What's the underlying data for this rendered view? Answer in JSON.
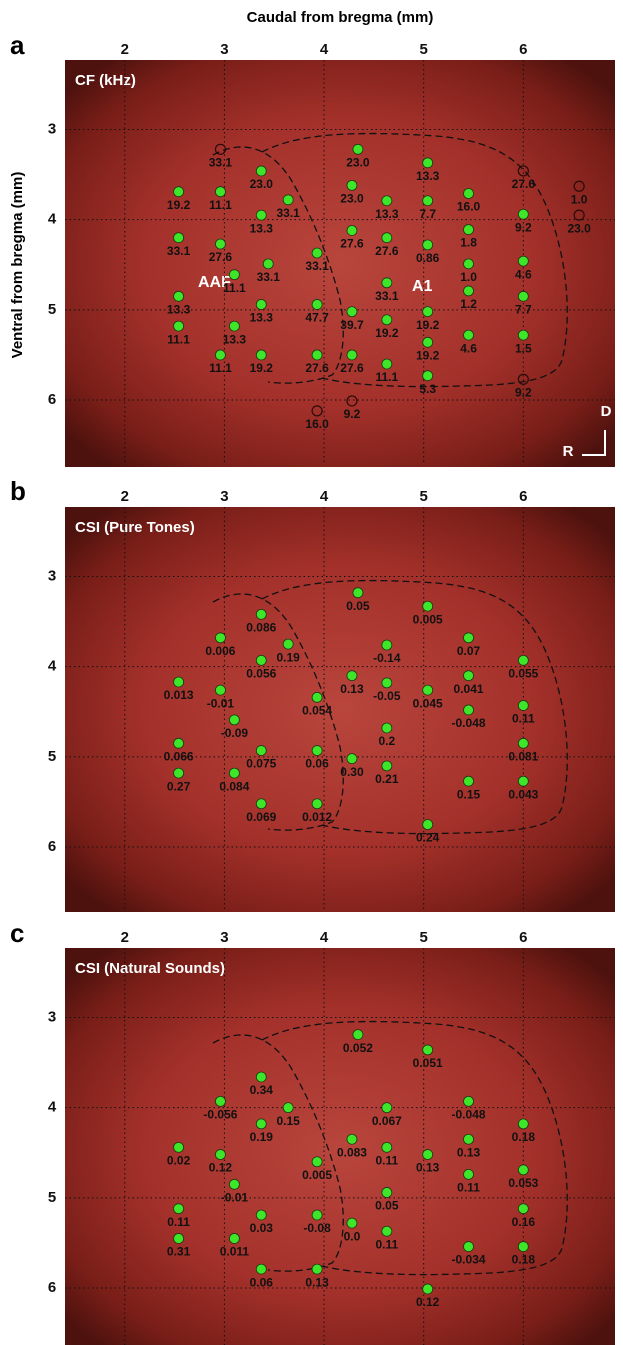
{
  "chart_data": [
    {
      "type": "scatter",
      "panel_label": "a",
      "title": "CF (kHz)",
      "xlabel": "Caudal from bregma (mm)",
      "ylabel": "Ventral from bregma (mm)",
      "annotations": [
        "AAF",
        "A1"
      ],
      "orientation": [
        "D",
        "R"
      ],
      "xlim": [
        1.4,
        6.92
      ],
      "ylim": [
        2.23,
        6.72
      ],
      "xticks": [
        2,
        3,
        4,
        5,
        6
      ],
      "yticks": [
        3,
        4,
        5,
        6
      ],
      "grid": true,
      "series": [
        {
          "color": "#3ee62a",
          "marker": "filled",
          "x": [
            2.54,
            2.96,
            3.37,
            3.64,
            3.37,
            2.54,
            2.96,
            3.1,
            3.44,
            3.93,
            2.54,
            2.54,
            3.37,
            3.93,
            3.1,
            2.96,
            3.37,
            3.93,
            4.34,
            4.28,
            4.63,
            5.04,
            5.04,
            5.45,
            4.28,
            4.63,
            5.04,
            5.45,
            5.45,
            4.63,
            4.28,
            4.63,
            5.04,
            5.45,
            5.04,
            5.45,
            4.28,
            4.63,
            5.04,
            6.0,
            6.0,
            6.0,
            6.0
          ],
          "y": [
            3.69,
            3.69,
            3.46,
            3.78,
            3.95,
            4.2,
            4.27,
            4.61,
            4.49,
            4.37,
            4.85,
            5.18,
            4.94,
            4.94,
            5.18,
            5.5,
            5.5,
            5.5,
            3.22,
            3.62,
            3.79,
            3.37,
            3.79,
            3.71,
            4.12,
            4.2,
            4.28,
            4.11,
            4.49,
            4.7,
            5.02,
            5.11,
            5.02,
            4.79,
            5.36,
            5.28,
            5.5,
            5.6,
            5.73,
            3.94,
            4.46,
            4.85,
            5.28
          ],
          "values": [
            19.2,
            11.1,
            23,
            33.1,
            13.3,
            33.1,
            27.6,
            11.1,
            33.1,
            33.1,
            13.3,
            11.1,
            13.3,
            47.7,
            13.3,
            11.1,
            19.2,
            27.6,
            23,
            23,
            13.3,
            13.3,
            7.7,
            16,
            27.6,
            27.6,
            0.86,
            1.8,
            1,
            33.1,
            39.7,
            19.2,
            19.2,
            1.2,
            19.2,
            4.6,
            27.6,
            11.1,
            5.3,
            9.2,
            4.6,
            7.7,
            1.5
          ],
          "value_labels": [
            "19.2",
            "11.1",
            "23.0",
            "33.1",
            "13.3",
            "33.1",
            "27.6",
            "11.1",
            "33.1",
            "33.1",
            "13.3",
            "11.1",
            "13.3",
            "47.7",
            "13.3",
            "11.1",
            "19.2",
            "27.6",
            "23.0",
            "23.0",
            "13.3",
            "13.3",
            "7.7",
            "16.0",
            "27.6",
            "27.6",
            "0.86",
            "1.8",
            "1.0",
            "33.1",
            "39.7",
            "19.2",
            "19.2",
            "1.2",
            "19.2",
            "4.6",
            "27.6",
            "11.1",
            "5.3",
            "9.2",
            "4.6",
            "7.7",
            "1.5"
          ]
        },
        {
          "color": "#2a0a08",
          "marker": "open",
          "x": [
            2.96,
            6.0,
            6.56,
            6.56,
            6.0,
            3.93,
            4.28
          ],
          "y": [
            3.22,
            3.46,
            3.63,
            3.95,
            5.77,
            6.12,
            6.01
          ],
          "values": [
            33.1,
            27.6,
            1,
            23,
            9.2,
            16,
            9.2
          ],
          "value_labels": [
            "33.1",
            "27.6",
            "1.0",
            "23.0",
            "9.2",
            "16.0",
            "9.2"
          ]
        }
      ]
    },
    {
      "type": "scatter",
      "panel_label": "b",
      "title": "CSI (Pure Tones)",
      "xlim": [
        1.4,
        6.92
      ],
      "ylim": [
        2.23,
        6.72
      ],
      "xticks": [
        2,
        3,
        4,
        5,
        6
      ],
      "yticks": [
        3,
        4,
        5,
        6
      ],
      "grid": true,
      "series": [
        {
          "color": "#3ee62a",
          "marker": "filled",
          "x": [
            4.34,
            5.04,
            3.37,
            2.96,
            3.64,
            3.37,
            4.63,
            5.45,
            6.0,
            2.54,
            2.96,
            4.28,
            4.63,
            5.04,
            5.45,
            5.45,
            3.1,
            3.93,
            6.0,
            4.63,
            2.54,
            3.37,
            3.93,
            4.28,
            4.63,
            6.0,
            2.54,
            3.1,
            5.45,
            6.0,
            3.37,
            3.93,
            5.04
          ],
          "y": [
            3.18,
            3.33,
            3.42,
            3.68,
            3.75,
            3.93,
            3.76,
            3.68,
            3.93,
            4.17,
            4.26,
            4.1,
            4.18,
            4.26,
            4.1,
            4.48,
            4.59,
            4.34,
            4.43,
            4.68,
            4.85,
            4.93,
            4.93,
            5.02,
            5.1,
            4.85,
            5.18,
            5.18,
            5.27,
            5.27,
            5.52,
            5.52,
            5.75
          ],
          "values": [
            0.05,
            0.005,
            0.086,
            0.006,
            0.19,
            0.056,
            -0.14,
            0.07,
            0.055,
            0.013,
            -0.01,
            0.13,
            -0.05,
            0.045,
            0.041,
            -0.048,
            -0.09,
            0.054,
            0.11,
            0.2,
            0.066,
            0.075,
            0.06,
            0.3,
            0.21,
            0.081,
            0.27,
            0.084,
            0.15,
            0.043,
            0.069,
            0.012,
            0.24
          ],
          "value_labels": [
            "0.05",
            "0.005",
            "0.086",
            "0.006",
            "0.19",
            "0.056",
            "-0.14",
            "0.07",
            "0.055",
            "0.013",
            "-0.01",
            "0.13",
            "-0.05",
            "0.045",
            "0.041",
            "-0.048",
            "-0.09",
            "0.054",
            "0.11",
            "0.2",
            "0.066",
            "0.075",
            "0.06",
            "0.30",
            "0.21",
            "0.081",
            "0.27",
            "0.084",
            "0.15",
            "0.043",
            "0.069",
            "0.012",
            "0.24"
          ]
        }
      ]
    },
    {
      "type": "scatter",
      "panel_label": "c",
      "title": "CSI (Natural Sounds)",
      "xlim": [
        1.4,
        6.92
      ],
      "ylim": [
        2.23,
        6.72
      ],
      "xticks": [
        2,
        3,
        4,
        5,
        6
      ],
      "yticks": [
        3,
        4,
        5,
        6
      ],
      "grid": true,
      "series": [
        {
          "color": "#3ee62a",
          "marker": "filled",
          "x": [
            4.34,
            5.04,
            3.37,
            2.96,
            3.64,
            4.63,
            5.45,
            3.37,
            6.0,
            2.54,
            2.96,
            4.28,
            4.63,
            5.04,
            5.45,
            5.45,
            3.1,
            3.93,
            6.0,
            4.63,
            2.54,
            3.37,
            3.93,
            4.28,
            4.63,
            6.0,
            2.54,
            3.1,
            5.45,
            6.0,
            3.37,
            3.93,
            5.04
          ],
          "y": [
            3.19,
            3.36,
            3.66,
            3.93,
            4.0,
            4.0,
            3.93,
            4.18,
            4.18,
            4.44,
            4.52,
            4.35,
            4.44,
            4.52,
            4.35,
            4.74,
            4.85,
            4.6,
            4.69,
            4.94,
            5.12,
            5.19,
            5.19,
            5.28,
            5.37,
            5.12,
            5.45,
            5.45,
            5.54,
            5.54,
            5.79,
            5.79,
            6.01
          ],
          "values": [
            0.052,
            0.051,
            0.34,
            -0.056,
            0.15,
            0.067,
            -0.048,
            0.19,
            0.18,
            0.02,
            0.12,
            0.083,
            0.11,
            0.13,
            0.13,
            0.11,
            -0.01,
            0.005,
            0.053,
            0.05,
            0.11,
            0.03,
            -0.08,
            0,
            0.11,
            0.16,
            0.31,
            0.011,
            -0.034,
            0.18,
            0.06,
            0.13,
            0.12
          ],
          "value_labels": [
            "0.052",
            "0.051",
            "0.34",
            "-0.056",
            "0.15",
            "0.067",
            "-0.048",
            "0.19",
            "0.18",
            "0.02",
            "0.12",
            "0.083",
            "0.11",
            "0.13",
            "0.13",
            "0.11",
            "-0.01",
            "0.005",
            "0.053",
            "0.05",
            "0.11",
            "0.03",
            "-0.08",
            "0.0",
            "0.11",
            "0.16",
            "0.31",
            "0.011",
            "-0.034",
            "0.18",
            "0.06",
            "0.13",
            "0.12"
          ]
        }
      ]
    }
  ]
}
